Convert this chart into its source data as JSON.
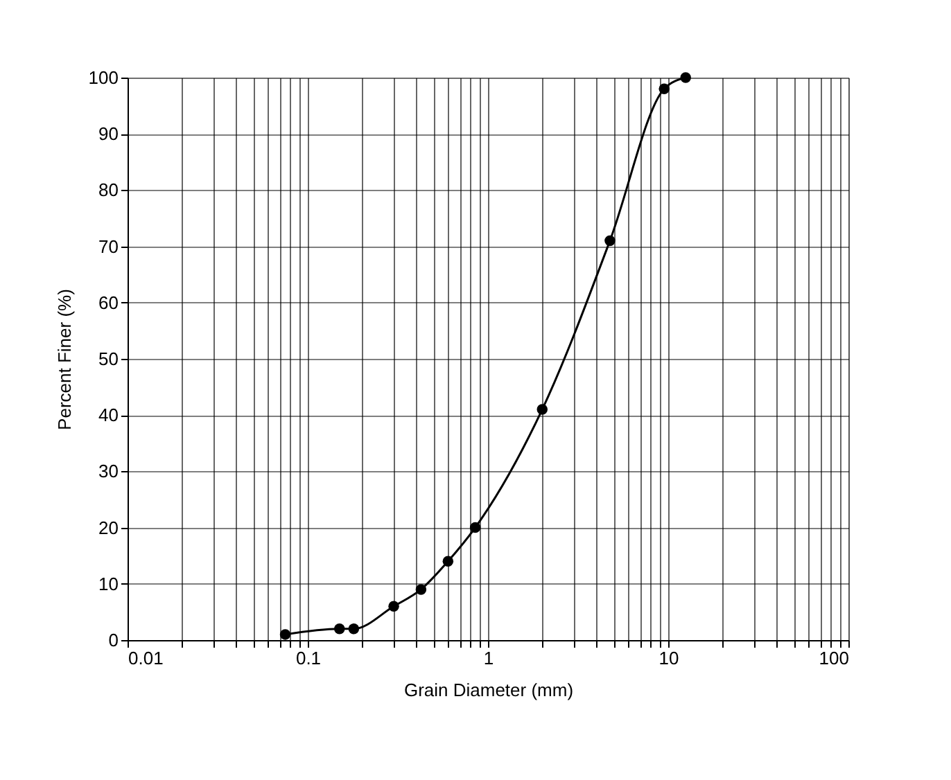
{
  "chart_data": {
    "type": "line",
    "xlabel": "Grain Diameter (mm)",
    "ylabel": "Percent Finer (%)",
    "log": "x",
    "grid": true,
    "marker": "circle",
    "line_style": "solid",
    "xlim": [
      0.01,
      100
    ],
    "ylim": [
      0,
      100
    ],
    "xticks": [
      0.01,
      {
        "value": 0.02,
        "label": null
      },
      {
        "value": 0.03,
        "label": null
      },
      {
        "value": 0.04,
        "label": null
      },
      {
        "value": 0.05,
        "label": null
      },
      {
        "value": 0.06,
        "label": null
      },
      {
        "value": 0.07,
        "label": null
      },
      {
        "value": 0.08,
        "label": null
      },
      {
        "value": 0.09,
        "label": null
      },
      0.1,
      {
        "value": 0.2,
        "label": null
      },
      {
        "value": 0.3,
        "label": null
      },
      {
        "value": 0.4,
        "label": null
      },
      {
        "value": 0.5,
        "label": null
      },
      {
        "value": 0.6,
        "label": null
      },
      {
        "value": 0.7,
        "label": null
      },
      {
        "value": 0.8,
        "label": null
      },
      {
        "value": 0.9,
        "label": null
      },
      1,
      {
        "value": 2,
        "label": null
      },
      {
        "value": 3,
        "label": null
      },
      {
        "value": 4,
        "label": null
      },
      {
        "value": 5,
        "label": null
      },
      {
        "value": 6,
        "label": null
      },
      {
        "value": 7,
        "label": null
      },
      {
        "value": 8,
        "label": null
      },
      {
        "value": 9,
        "label": null
      },
      10,
      {
        "value": 20,
        "label": null
      },
      {
        "value": 30,
        "label": null
      },
      {
        "value": 40,
        "label": null
      },
      {
        "value": 50,
        "label": null
      },
      {
        "value": 60,
        "label": null
      },
      {
        "value": 70,
        "label": null
      },
      {
        "value": 80,
        "label": null
      },
      {
        "value": 90,
        "label": null
      },
      100
    ],
    "yticks": [
      0,
      10,
      20,
      30,
      40,
      50,
      60,
      70,
      80,
      90,
      100
    ],
    "x": [
      0.075,
      0.15,
      0.18,
      0.3,
      0.425,
      0.6,
      0.85,
      2,
      4.75,
      9.5,
      12.5
    ],
    "series": [
      {
        "color": "#000000",
        "values": [
          1,
          2,
          2,
          6,
          9,
          14,
          20,
          41,
          71,
          98,
          100
        ]
      }
    ]
  }
}
